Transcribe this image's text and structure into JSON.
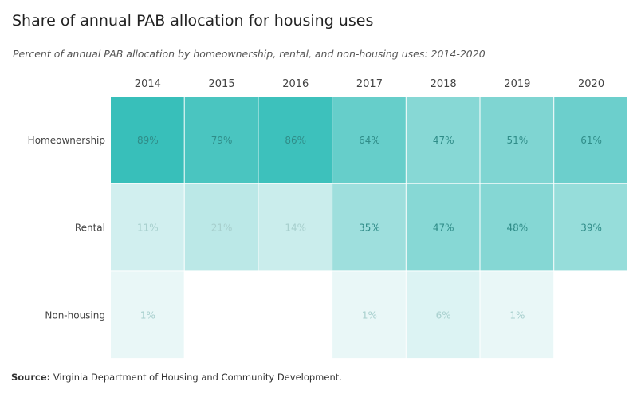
{
  "title": "Share of annual PAB allocation for housing uses",
  "subtitle": "Percent of annual PAB allocation by homeownership, rental, and non-housing uses: 2014-2020",
  "source": {
    "label": "Source:",
    "text": " Virginia Department of Housing and Community Development."
  },
  "colors": {
    "scale_low": "#ecf8f8",
    "scale_high": "#38bfba",
    "text_dark": "#2f8c88",
    "text_light": "#a7cfcd"
  },
  "chart_data": {
    "type": "heatmap",
    "x": [
      "2014",
      "2015",
      "2016",
      "2017",
      "2018",
      "2019",
      "2020"
    ],
    "y": [
      "Homeownership",
      "Rental",
      "Non-housing"
    ],
    "unit": "%",
    "values": [
      [
        89,
        79,
        86,
        64,
        47,
        51,
        61
      ],
      [
        11,
        21,
        14,
        35,
        47,
        48,
        39
      ],
      [
        1,
        null,
        null,
        1,
        6,
        1,
        null
      ]
    ],
    "labels": [
      [
        "89%",
        "79%",
        "86%",
        "64%",
        "47%",
        "51%",
        "61%"
      ],
      [
        "11%",
        "21%",
        "14%",
        "35%",
        "47%",
        "48%",
        "39%"
      ],
      [
        "1%",
        "",
        "",
        "1%",
        "6%",
        "1%",
        ""
      ]
    ]
  }
}
